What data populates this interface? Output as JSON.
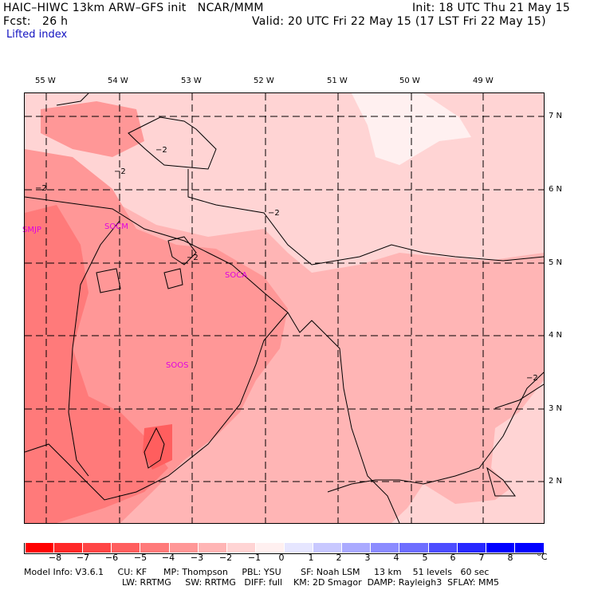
{
  "header": {
    "model_title": "HAIC–HIWC 13km ARW–GFS init   NCAR/MMM",
    "init_time": "Init: 18 UTC Thu 21 May 15",
    "forecast_hour": "Fcst:   26 h",
    "valid_time": "Valid: 20 UTC Fri 22 May 15 (17 LST Fri 22 May 15)",
    "field_name": "Lifted index"
  },
  "map": {
    "longitude_labels": [
      "55 W",
      "54 W",
      "53 W",
      "52 W",
      "51 W",
      "50 W",
      "49 W"
    ],
    "latitude_labels": [
      "7 N",
      "6 N",
      "5 N",
      "4 N",
      "3 N",
      "2 N"
    ],
    "stations": [
      "SMJP",
      "SOCM",
      "SOCA",
      "SOOS"
    ],
    "contour_label": "−2"
  },
  "colorbar": {
    "ticks": [
      "−8",
      "−7",
      "−6",
      "−5",
      "−4",
      "−3",
      "−2",
      "−1",
      "0",
      "1",
      "2",
      "3",
      "4",
      "5",
      "6",
      "7",
      "8"
    ],
    "unit": "°C",
    "colors": [
      "#ff0000",
      "#ff2828",
      "#ff4545",
      "#ff5e5e",
      "#ff7a7a",
      "#ff9797",
      "#ffb5b5",
      "#ffd4d4",
      "#fff0f0",
      "#e6e6ff",
      "#c8c8ff",
      "#aaaaff",
      "#8c8cff",
      "#6e6eff",
      "#4d4dff",
      "#2828ff",
      "#0000ff"
    ]
  },
  "model_info": {
    "line1": "Model Info: V3.6.1     CU: KF      MP: Thompson     PBL: YSU       SF: Noah LSM     13 km    51 levels   60 sec",
    "line2": "LW: RRTMG     SW: RRTMG   DIFF: full    KM: 2D Smagor  DAMP: Rayleigh3  SFLAY: MM5"
  }
}
